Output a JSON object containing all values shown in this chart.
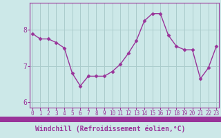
{
  "x": [
    0,
    1,
    2,
    3,
    4,
    5,
    6,
    7,
    8,
    9,
    10,
    11,
    12,
    13,
    14,
    15,
    16,
    17,
    18,
    19,
    20,
    21,
    22,
    23
  ],
  "y": [
    7.9,
    7.75,
    7.75,
    7.65,
    7.5,
    6.8,
    6.45,
    6.72,
    6.72,
    6.72,
    6.85,
    7.05,
    7.35,
    7.7,
    8.25,
    8.45,
    8.45,
    7.85,
    7.55,
    7.45,
    7.45,
    6.65,
    6.95,
    7.55
  ],
  "line_color": "#993399",
  "marker": "D",
  "marker_size": 2.5,
  "bg_color": "#cce8e8",
  "grid_color": "#aacccc",
  "axis_color": "#993399",
  "tick_color": "#993399",
  "xlabel": "Windchill (Refroidissement éolien,°C)",
  "xlabel_fontsize": 7,
  "ytick_labels": [
    "6",
    "7",
    "8"
  ],
  "ytick_vals": [
    6,
    7,
    8
  ],
  "xticks": [
    0,
    1,
    2,
    3,
    4,
    5,
    6,
    7,
    8,
    9,
    10,
    11,
    12,
    13,
    14,
    15,
    16,
    17,
    18,
    19,
    20,
    21,
    22,
    23
  ],
  "ylim": [
    5.85,
    8.75
  ],
  "xlim": [
    -0.3,
    23.3
  ],
  "xticklabel_fontsize": 5.5,
  "yticklabel_fontsize": 7,
  "spine_band_color": "#993399",
  "linewidth": 1.0
}
